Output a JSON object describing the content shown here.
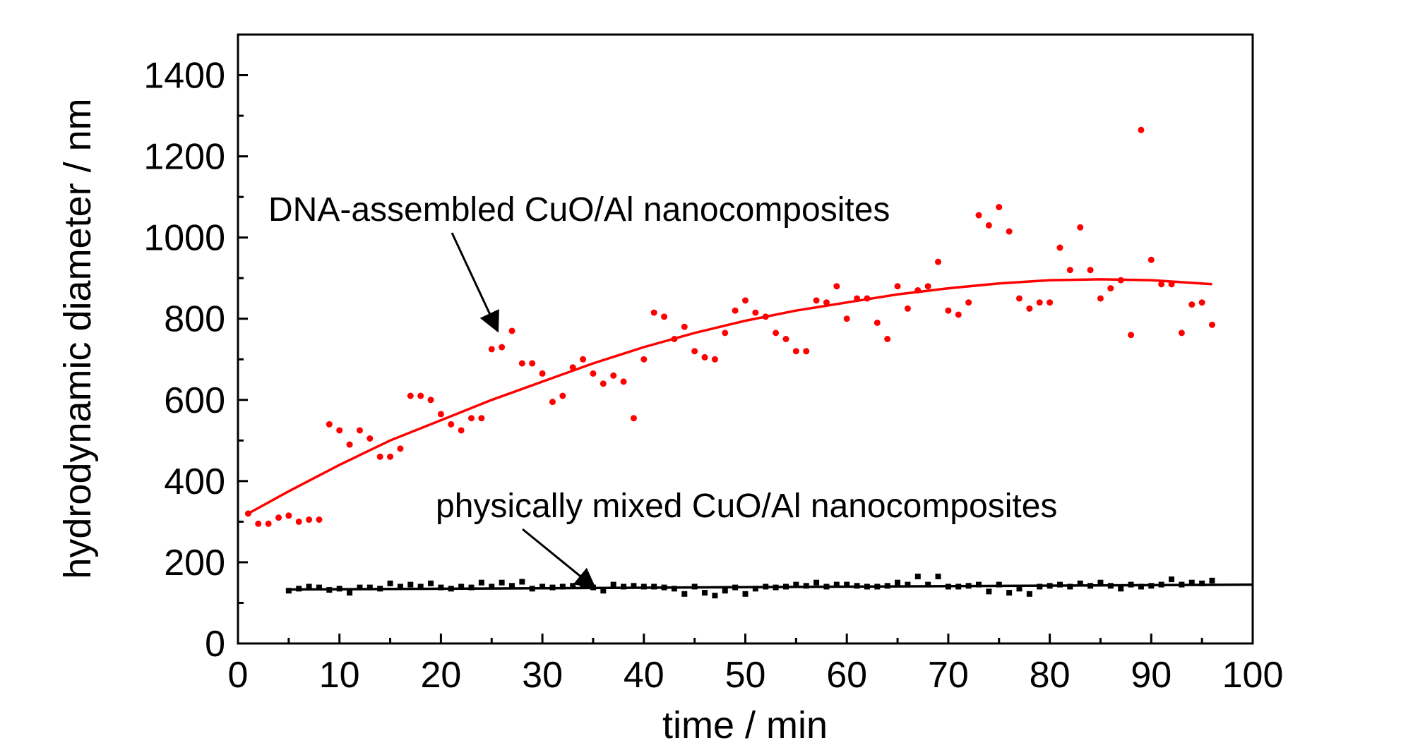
{
  "chart_data": {
    "type": "scatter",
    "title": "",
    "xlabel": "time / min",
    "ylabel": "hydrodynamic diameter / nm",
    "xlim": [
      0,
      100
    ],
    "ylim": [
      0,
      1500
    ],
    "xticks": [
      0,
      10,
      20,
      30,
      40,
      50,
      60,
      70,
      80,
      90,
      100
    ],
    "yticks": [
      0,
      200,
      400,
      600,
      800,
      1000,
      1200,
      1400
    ],
    "xtick_labels": [
      "0",
      "10",
      "20",
      "30",
      "40",
      "50",
      "60",
      "70",
      "80",
      "90",
      "100"
    ],
    "ytick_labels": [
      "0",
      "200",
      "400",
      "600",
      "800",
      "1000",
      "1200",
      "1400"
    ],
    "grid": false,
    "legend": "none",
    "annotations": [
      {
        "text": "DNA-assembled CuO/Al nanocomposites",
        "points_to": {
          "x": 25.5,
          "y": 775
        }
      },
      {
        "text": "physically mixed CuO/Al nanocomposites",
        "points_to": {
          "x": 35,
          "y": 140
        }
      }
    ],
    "series": [
      {
        "id": "dna",
        "color": "#ff0000",
        "style": "points",
        "x": [
          1,
          2,
          3,
          4,
          5,
          6,
          7,
          8,
          9,
          10,
          11,
          12,
          13,
          14,
          15,
          16,
          17,
          18,
          19,
          20,
          21,
          22,
          23,
          24,
          25,
          26,
          27,
          28,
          29,
          30,
          31,
          32,
          33,
          34,
          35,
          36,
          37,
          38,
          39,
          40,
          41,
          42,
          43,
          44,
          45,
          46,
          47,
          48,
          49,
          50,
          51,
          52,
          53,
          54,
          55,
          56,
          57,
          58,
          59,
          60,
          61,
          62,
          63,
          64,
          65,
          66,
          67,
          68,
          69,
          70,
          71,
          72,
          73,
          74,
          75,
          76,
          77,
          78,
          79,
          80,
          81,
          82,
          83,
          84,
          85,
          86,
          87,
          88,
          89,
          90,
          91,
          92,
          93,
          94,
          95,
          96
        ],
        "y": [
          320,
          295,
          295,
          310,
          315,
          300,
          305,
          305,
          540,
          525,
          490,
          525,
          505,
          460,
          460,
          480,
          610,
          610,
          600,
          565,
          540,
          525,
          555,
          555,
          725,
          730,
          770,
          690,
          690,
          665,
          595,
          610,
          680,
          700,
          665,
          640,
          660,
          645,
          555,
          700,
          815,
          805,
          750,
          780,
          720,
          705,
          700,
          765,
          820,
          845,
          815,
          805,
          765,
          750,
          720,
          720,
          845,
          840,
          880,
          800,
          850,
          850,
          790,
          750,
          880,
          825,
          870,
          880,
          940,
          820,
          810,
          840,
          1055,
          1030,
          1075,
          1015,
          850,
          825,
          840,
          840,
          975,
          920,
          1025,
          920,
          850,
          875,
          895,
          760,
          1265,
          945,
          885,
          885,
          765,
          835,
          840,
          785
        ]
      },
      {
        "id": "dna-fit",
        "color": "#ff0000",
        "style": "line",
        "x": [
          1,
          5,
          10,
          15,
          20,
          25,
          30,
          35,
          40,
          45,
          50,
          55,
          60,
          65,
          70,
          75,
          80,
          85,
          90,
          96
        ],
        "y": [
          320,
          375,
          440,
          500,
          550,
          600,
          645,
          690,
          730,
          765,
          795,
          820,
          840,
          860,
          875,
          887,
          895,
          897,
          895,
          885
        ]
      },
      {
        "id": "physical",
        "color": "#000000",
        "style": "points",
        "x": [
          5,
          6,
          7,
          8,
          9,
          10,
          11,
          12,
          13,
          14,
          15,
          16,
          17,
          18,
          19,
          20,
          21,
          22,
          23,
          24,
          25,
          26,
          27,
          28,
          29,
          30,
          31,
          32,
          33,
          34,
          35,
          36,
          37,
          38,
          39,
          40,
          41,
          42,
          43,
          44,
          45,
          46,
          47,
          48,
          49,
          50,
          51,
          52,
          53,
          54,
          55,
          56,
          57,
          58,
          59,
          60,
          61,
          62,
          63,
          64,
          65,
          66,
          67,
          68,
          69,
          70,
          71,
          72,
          73,
          74,
          75,
          76,
          77,
          78,
          79,
          80,
          81,
          82,
          83,
          84,
          85,
          86,
          87,
          88,
          89,
          90,
          91,
          92,
          93,
          94,
          95,
          96
        ],
        "y": [
          130,
          135,
          140,
          138,
          132,
          135,
          125,
          138,
          138,
          135,
          148,
          140,
          145,
          140,
          148,
          138,
          135,
          140,
          138,
          150,
          140,
          150,
          142,
          152,
          135,
          140,
          138,
          140,
          142,
          145,
          138,
          130,
          145,
          140,
          142,
          140,
          140,
          138,
          135,
          122,
          140,
          125,
          118,
          130,
          138,
          122,
          135,
          140,
          138,
          140,
          145,
          142,
          150,
          140,
          145,
          145,
          142,
          140,
          140,
          142,
          150,
          145,
          165,
          145,
          165,
          140,
          140,
          142,
          145,
          128,
          145,
          125,
          135,
          122,
          140,
          142,
          145,
          140,
          148,
          142,
          150,
          142,
          135,
          145,
          140,
          142,
          145,
          158,
          145,
          150,
          148,
          155
        ]
      },
      {
        "id": "physical-fit",
        "color": "#000000",
        "style": "line",
        "x": [
          5,
          100
        ],
        "y": [
          133,
          145
        ]
      }
    ]
  }
}
